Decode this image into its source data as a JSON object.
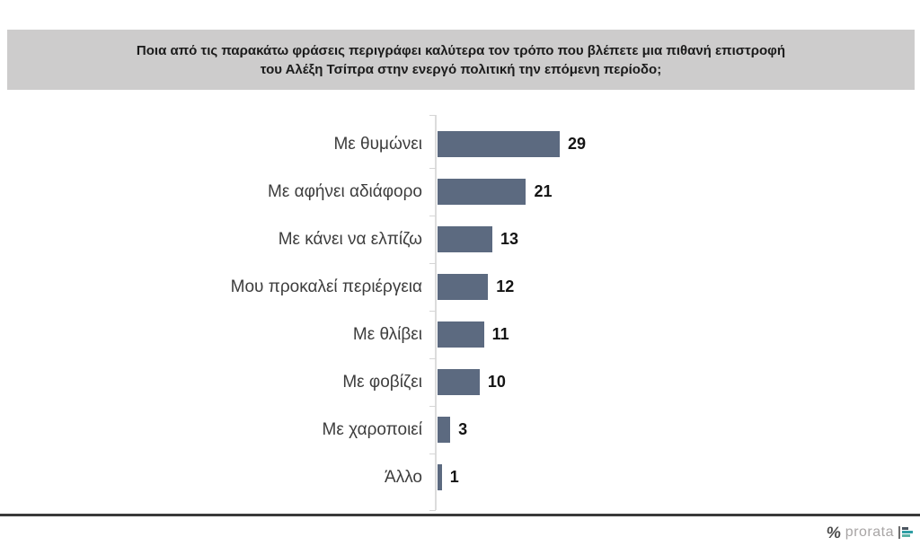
{
  "header": {
    "title_line1": "Ποια από τις παρακάτω φράσεις περιγράφει καλύτερα τον τρόπο που βλέπετε μια πιθανή επιστροφή",
    "title_line2": "του Αλέξη Τσίπρα στην ενεργό πολιτική την επόμενη περίοδο;"
  },
  "chart_data": {
    "type": "bar",
    "orientation": "horizontal",
    "title": "Ποια από τις παρακάτω φράσεις περιγράφει καλύτερα τον τρόπο που βλέπετε μια πιθανή επιστροφή του Αλέξη Τσίπρα στην ενεργό πολιτική την επόμενη περίοδο;",
    "categories": [
      "Με θυμώνει",
      "Με αφήνει αδιάφορο",
      "Με κάνει να ελπίζω",
      "Μου προκαλεί περιέργεια",
      "Με θλίβει",
      "Με φοβίζει",
      "Με χαροποιεί",
      "Άλλο"
    ],
    "values": [
      29,
      21,
      13,
      12,
      11,
      10,
      3,
      1
    ],
    "xlabel": "",
    "ylabel": "",
    "xlim": [
      0,
      30
    ],
    "grid": false,
    "legend_position": "none",
    "value_labels_shown": true,
    "bar_color": "#5c6a80"
  },
  "footer": {
    "logo_percent": "%",
    "logo_text": "prorata"
  },
  "colors": {
    "bar": "#5c6a80",
    "banner_bg": "#cdcccc",
    "axis_line": "#dcdcdc",
    "divider": "#3a3a3a",
    "title_text": "#1b1b1b",
    "category_text": "#3d3d3d",
    "value_text": "#141414",
    "logo_text": "#a8a5a5",
    "logo_percent": "#4c4c4c",
    "logo_bar_dark": "#4a5560",
    "logo_bar_teal": "#2f9ea4",
    "logo_bar_teal_light": "#58b1a5"
  }
}
